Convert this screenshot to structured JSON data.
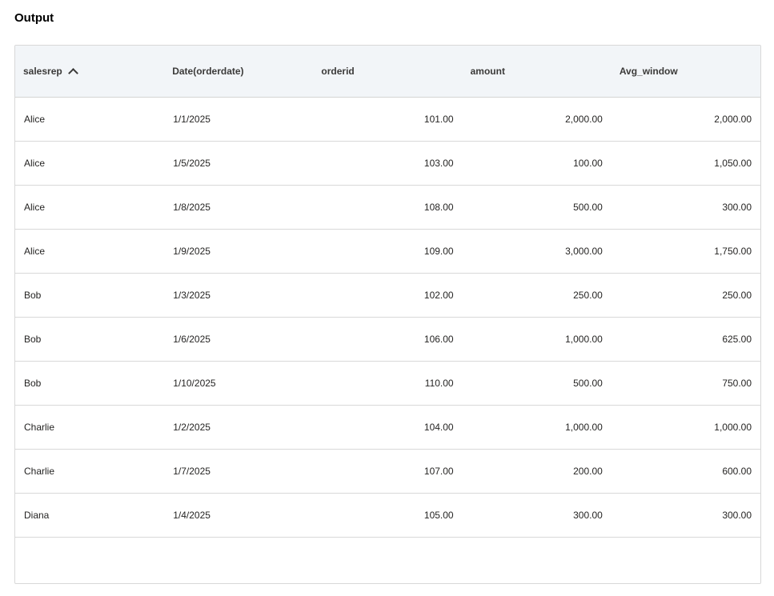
{
  "title": "Output",
  "table": {
    "columns": [
      "salesrep",
      "Date(orderdate)",
      "orderid",
      "amount",
      "Avg_window"
    ],
    "sort": {
      "column": "salesrep",
      "direction": "ascending",
      "icon": "chevron-up-icon"
    },
    "rows": [
      [
        "Alice",
        "1/1/2025",
        "101.00",
        "2,000.00",
        "2,000.00"
      ],
      [
        "Alice",
        "1/5/2025",
        "103.00",
        "100.00",
        "1,050.00"
      ],
      [
        "Alice",
        "1/8/2025",
        "108.00",
        "500.00",
        "300.00"
      ],
      [
        "Alice",
        "1/9/2025",
        "109.00",
        "3,000.00",
        "1,750.00"
      ],
      [
        "Bob",
        "1/3/2025",
        "102.00",
        "250.00",
        "250.00"
      ],
      [
        "Bob",
        "1/6/2025",
        "106.00",
        "1,000.00",
        "625.00"
      ],
      [
        "Bob",
        "1/10/2025",
        "110.00",
        "500.00",
        "750.00"
      ],
      [
        "Charlie",
        "1/2/2025",
        "104.00",
        "1,000.00",
        "1,000.00"
      ],
      [
        "Charlie",
        "1/7/2025",
        "107.00",
        "200.00",
        "600.00"
      ],
      [
        "Diana",
        "1/4/2025",
        "105.00",
        "300.00",
        "300.00"
      ]
    ]
  }
}
